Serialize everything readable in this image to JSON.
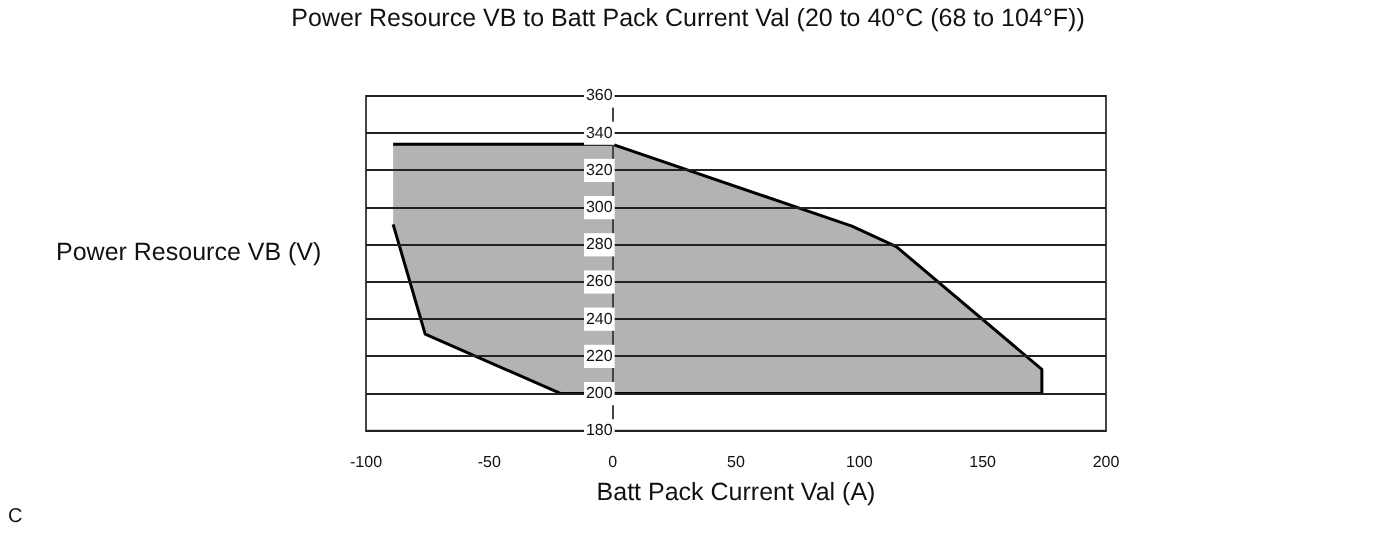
{
  "chart_data": {
    "type": "area",
    "title": "Power Resource VB to Batt Pack Current Val (20 to 40°C (68 to 104°F))",
    "xlabel": "Batt Pack Current Val (A)",
    "ylabel": "Power Resource VB (V)",
    "annotations": [
      "C"
    ],
    "series": [
      {
        "color": "#b3b3b3",
        "x": [
          -89,
          0,
          97,
          115,
          174,
          174,
          -21,
          -76,
          -89
        ],
        "values": [
          334,
          334,
          290,
          279,
          213,
          200,
          200,
          232,
          291
        ]
      }
    ],
    "xlim": [
      -100,
      200
    ],
    "xticks": [
      -100,
      -50,
      0,
      50,
      100,
      150,
      200
    ],
    "ylim": [
      180,
      360
    ],
    "yticks": [
      180,
      200,
      220,
      240,
      260,
      280,
      300,
      320,
      340,
      360
    ],
    "grid": "y",
    "marker": "none",
    "line_style": "solid"
  }
}
